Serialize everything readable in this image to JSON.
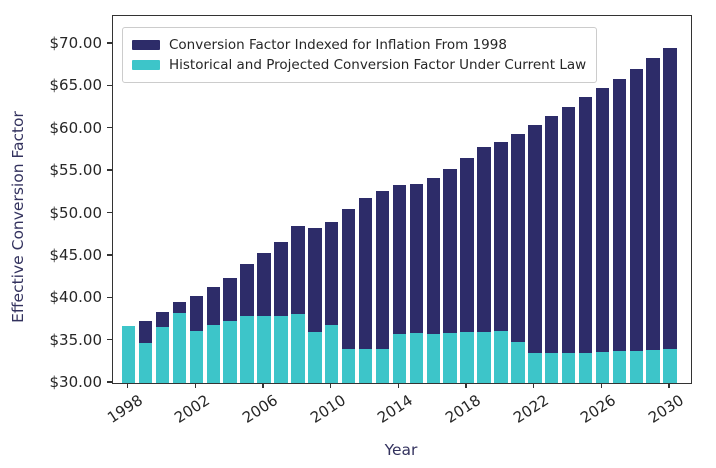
{
  "chart_data": {
    "type": "bar",
    "bar_mode": "overlay",
    "title": "",
    "xlabel": "Year",
    "ylabel": "Effective Conversion Factor",
    "categories": [
      1998,
      1999,
      2000,
      2001,
      2002,
      2003,
      2004,
      2005,
      2006,
      2007,
      2008,
      2009,
      2010,
      2011,
      2012,
      2013,
      2014,
      2015,
      2016,
      2017,
      2018,
      2019,
      2020,
      2021,
      2022,
      2023,
      2024,
      2025,
      2026,
      2027,
      2028,
      2029,
      2030
    ],
    "series": [
      {
        "name": "Conversion Factor Indexed for Inflation From 1998",
        "color": "#2d2c69",
        "values": [
          36.69,
          37.3,
          38.4,
          39.6,
          40.3,
          41.3,
          42.4,
          44.0,
          45.3,
          46.6,
          48.5,
          48.3,
          49.0,
          50.5,
          51.8,
          52.6,
          53.4,
          53.5,
          54.2,
          55.3,
          56.6,
          57.8,
          58.4,
          59.4,
          60.5,
          61.5,
          62.6,
          63.7,
          64.8,
          65.9,
          67.1,
          68.3,
          69.5
        ]
      },
      {
        "name": "Historical and Projected Conversion Factor Under Current Law",
        "color": "#3dc5c9",
        "values": [
          36.69,
          34.73,
          36.61,
          38.26,
          36.2,
          36.79,
          37.34,
          37.9,
          37.9,
          37.9,
          38.09,
          36.07,
          36.87,
          33.98,
          34.04,
          34.02,
          35.82,
          35.93,
          35.8,
          35.89,
          36.0,
          36.04,
          36.09,
          34.89,
          33.59,
          33.59,
          33.59,
          33.59,
          33.67,
          33.76,
          33.84,
          33.92,
          34.01
        ]
      }
    ],
    "ylim": [
      30,
      73.3
    ],
    "yticks": [
      30,
      35,
      40,
      45,
      50,
      55,
      60,
      65,
      70
    ],
    "ytick_labels": [
      "$30.00",
      "$35.00",
      "$40.00",
      "$45.00",
      "$50.00",
      "$55.00",
      "$60.00",
      "$65.00",
      "$70.00"
    ],
    "xticks": [
      1998,
      2002,
      2006,
      2010,
      2014,
      2018,
      2022,
      2026,
      2030
    ],
    "xtick_labels": [
      "1998",
      "2002",
      "2006",
      "2010",
      "2014",
      "2018",
      "2022",
      "2026",
      "2030"
    ],
    "legend": {
      "position": "upper-left",
      "entries": [
        "Conversion Factor Indexed for Inflation From 1998",
        "Historical and Projected Conversion Factor Under Current Law"
      ]
    },
    "grid": false,
    "colors": {
      "indexed_bar": "#2d2c69",
      "current_law_bar": "#3dc5c9",
      "axis_title": "#33325e",
      "tick_label": "#262626",
      "spine": "#333333"
    }
  }
}
